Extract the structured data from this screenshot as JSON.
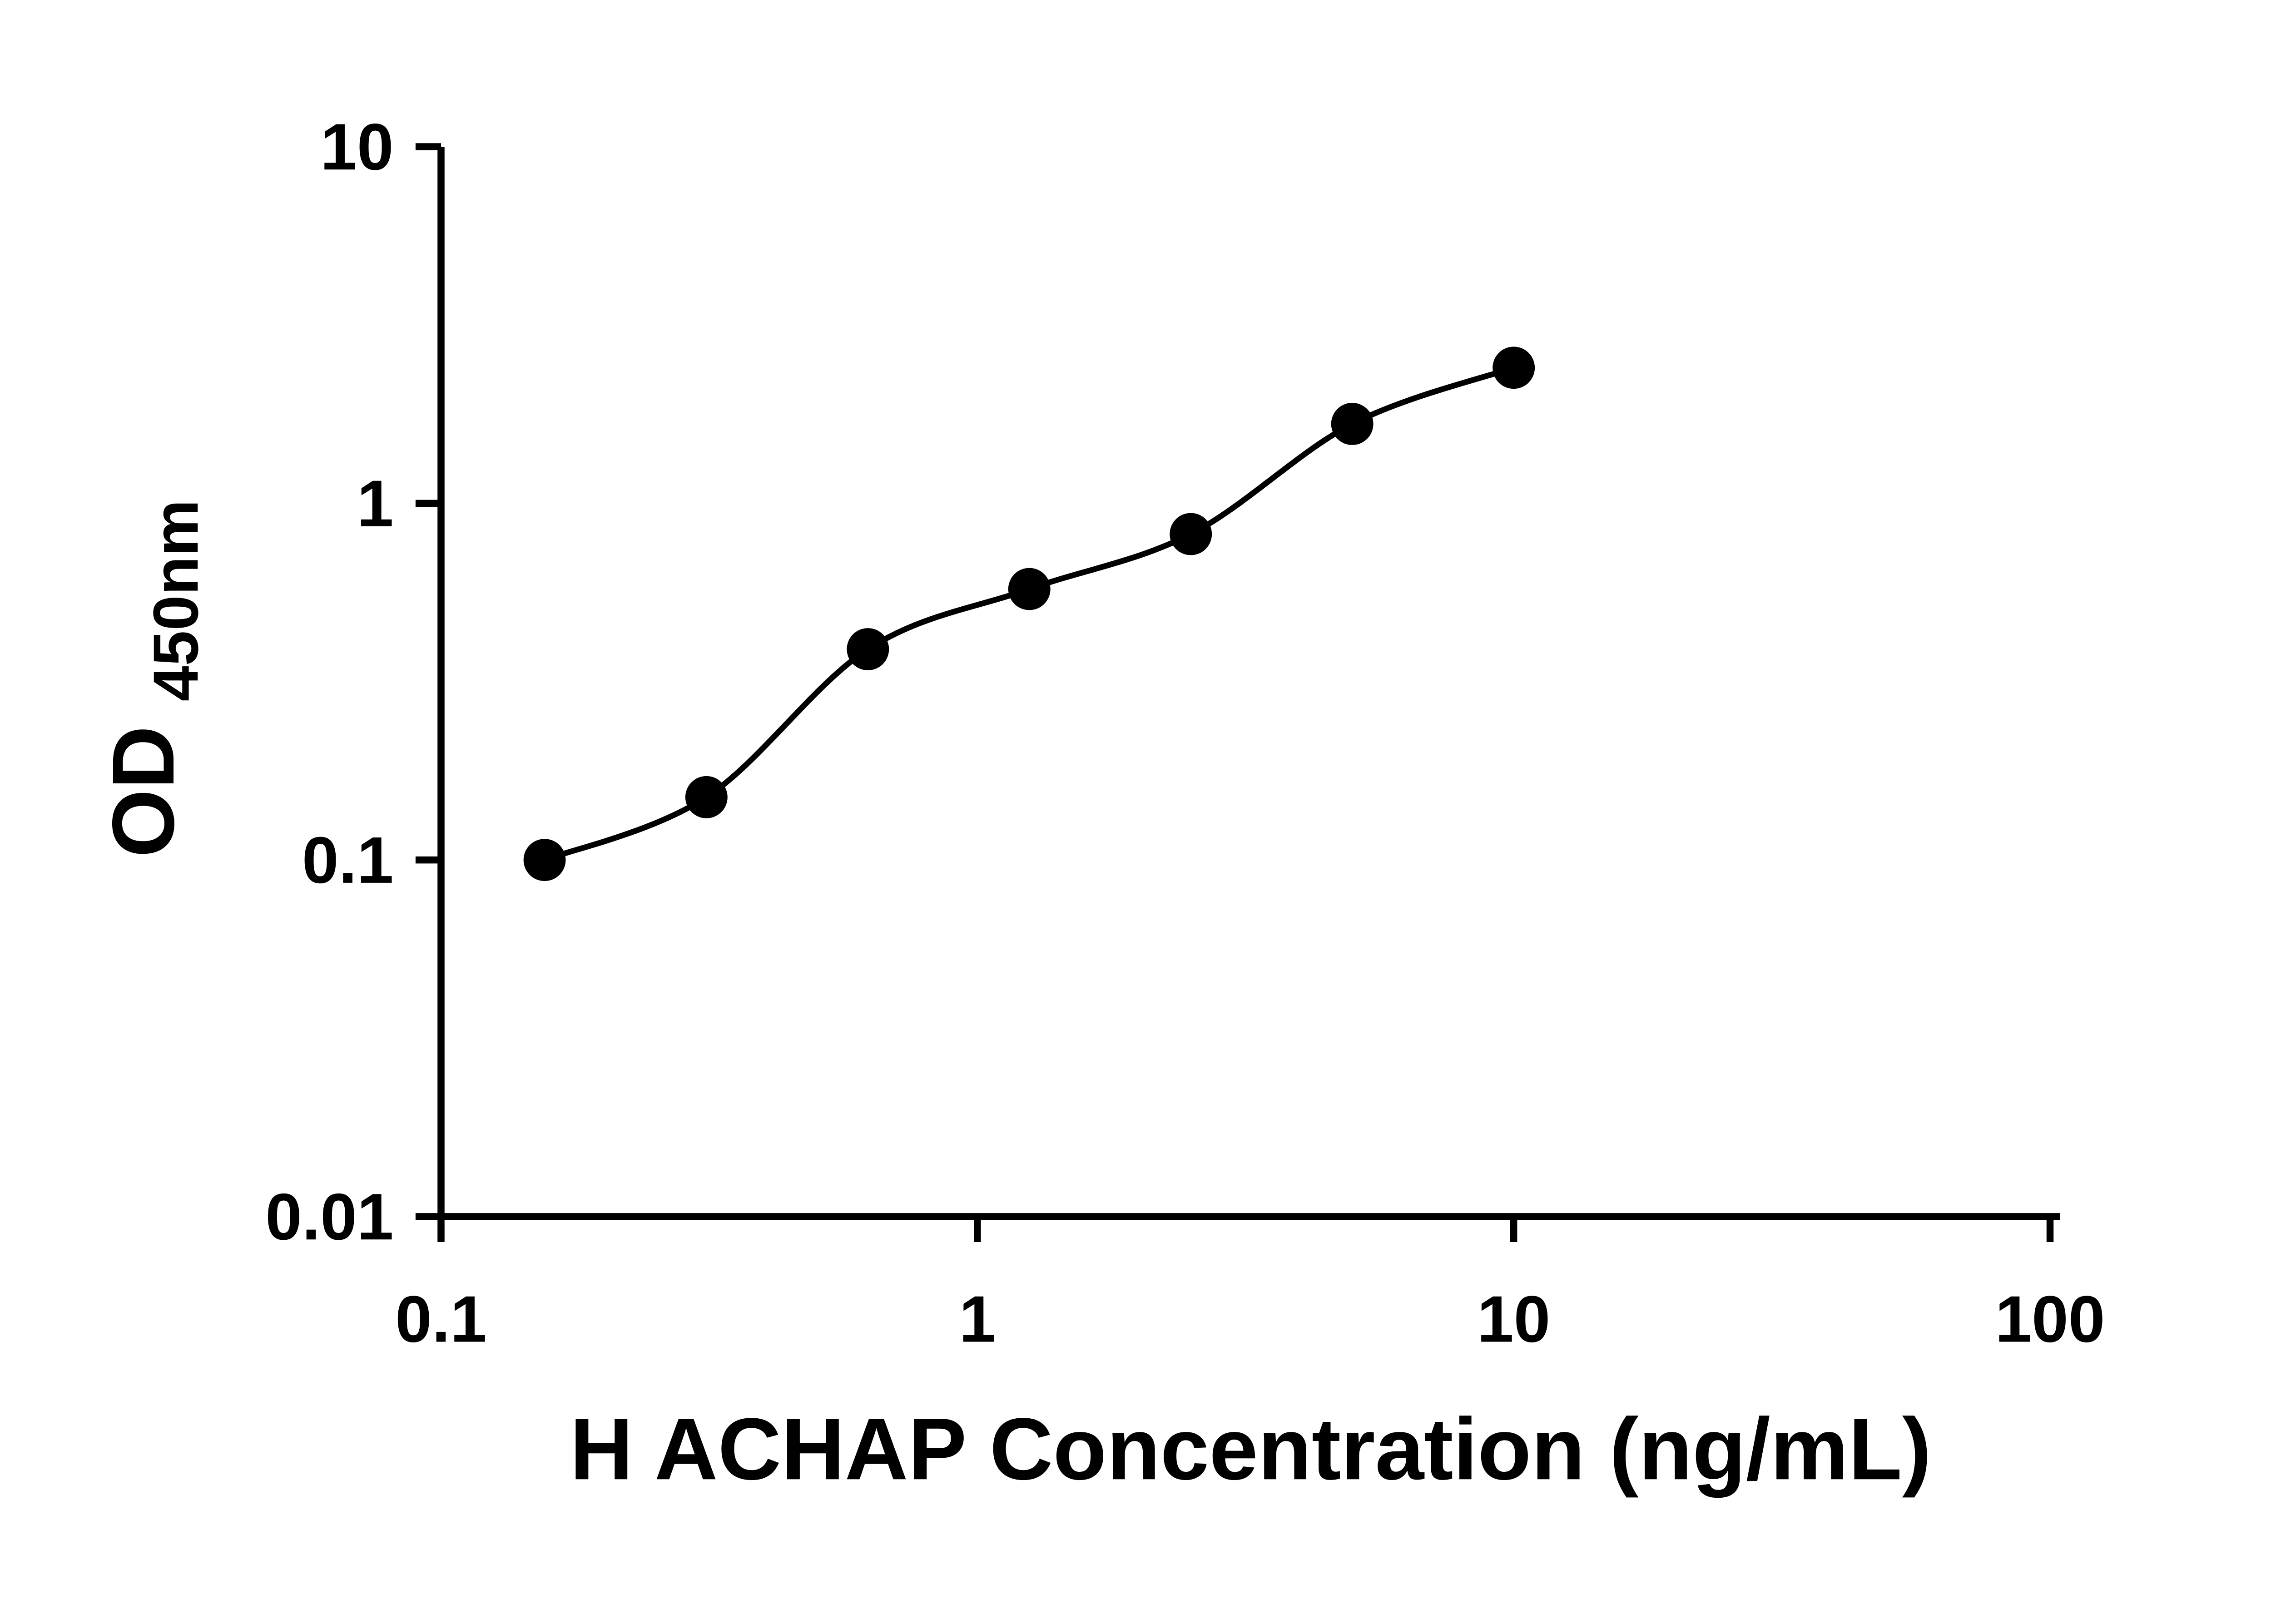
{
  "page": {
    "background_color": "#ffffff"
  },
  "chart_data": {
    "type": "scatter",
    "subtype": "elisa-standard-curve",
    "title": "",
    "xlabel": "H ACHAP Concentration (ng/mL)",
    "ylabel": "OD450nm",
    "ylabel_main": "OD",
    "ylabel_sub": "450nm",
    "x_scale": "log10",
    "y_scale": "log10",
    "xlim": [
      0.1,
      100
    ],
    "ylim": [
      0.01,
      10
    ],
    "grid": false,
    "legend": null,
    "axis_color": "#000000",
    "background_color": "#ffffff",
    "x_ticks": [
      {
        "value": 0.1,
        "label": "0.1"
      },
      {
        "value": 1,
        "label": "1"
      },
      {
        "value": 10,
        "label": "10"
      },
      {
        "value": 100,
        "label": "100"
      }
    ],
    "y_ticks": [
      {
        "value": 0.01,
        "label": "0.01"
      },
      {
        "value": 0.1,
        "label": "0.1"
      },
      {
        "value": 1,
        "label": "1"
      },
      {
        "value": 10,
        "label": "10"
      }
    ],
    "series": [
      {
        "marker": "circle",
        "marker_color": "#000000",
        "line_color": "#000000",
        "points": [
          {
            "x": 0.156,
            "y": 0.1
          },
          {
            "x": 0.3125,
            "y": 0.15
          },
          {
            "x": 0.625,
            "y": 0.39
          },
          {
            "x": 1.25,
            "y": 0.575
          },
          {
            "x": 2.5,
            "y": 0.82
          },
          {
            "x": 5,
            "y": 1.67
          },
          {
            "x": 10,
            "y": 2.4
          }
        ]
      }
    ]
  }
}
